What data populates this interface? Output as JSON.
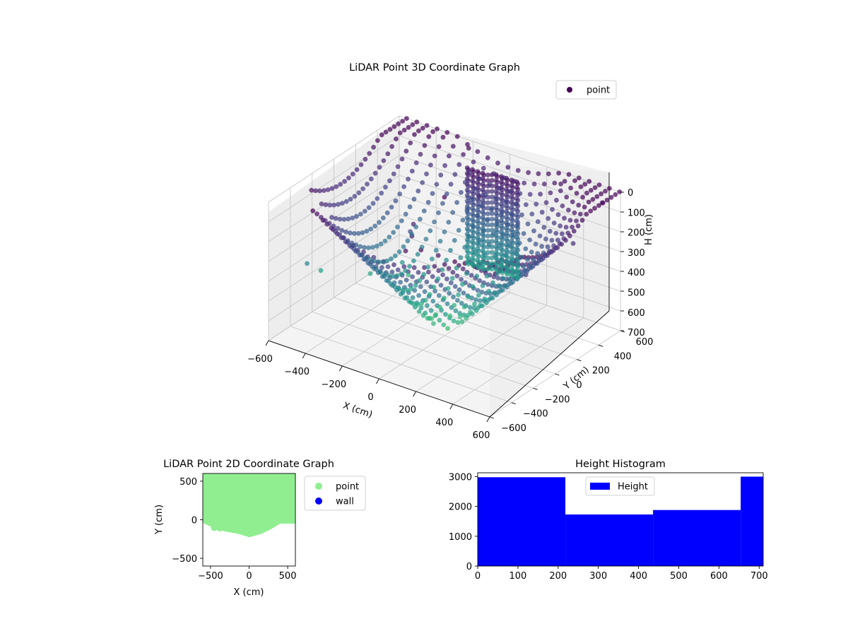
{
  "figure": {
    "colors": {
      "background": "#ffffff",
      "pane_side": "#ebebeb",
      "pane_back": "#f2f2f2",
      "grid": "#c8c8c8",
      "axis": "#000000"
    }
  },
  "chart_data": [
    {
      "type": "scatter",
      "projection": "3d",
      "title": "LiDAR Point 3D Coordinate Graph",
      "xlabel": "X (cm)",
      "ylabel": "Y (cm)",
      "zlabel": "H (cm)",
      "xlim": [
        -600,
        600
      ],
      "ylim": [
        -600,
        600
      ],
      "zlim": [
        0,
        700
      ],
      "z_inverted": true,
      "xticks": [
        "−600",
        "−400",
        "−200",
        "0",
        "200",
        "400",
        "600"
      ],
      "yticks": [
        "−600",
        "−400",
        "−200",
        "0",
        "200",
        "400",
        "600"
      ],
      "zticks": [
        "0",
        "100",
        "200",
        "300",
        "400",
        "500",
        "600",
        "700"
      ],
      "grid": true,
      "legend": {
        "placement": "top-right",
        "entries": [
          "point"
        ]
      },
      "colormap": "viridis",
      "color_by": "H (cm)",
      "series": [
        {
          "name": "point",
          "color": "#440154",
          "description_points": "dense scanned surface; points colored by height, bowl-shaped scan of a room",
          "points": [
            {
              "x": -580,
              "y": -280,
              "z": 420
            },
            {
              "x": -600,
              "y": -120,
              "z": 520
            },
            {
              "x": -450,
              "y": 80,
              "z": 560
            },
            {
              "x": -350,
              "y": 260,
              "z": 600
            },
            {
              "x": -300,
              "y": 120,
              "z": 470
            },
            {
              "x": -150,
              "y": -60,
              "z": 200
            },
            {
              "x": -50,
              "y": -200,
              "z": 80
            },
            {
              "x": 30,
              "y": -350,
              "z": 60
            },
            {
              "x": 120,
              "y": -560,
              "z": 30
            },
            {
              "x": 180,
              "y": -520,
              "z": 20
            },
            {
              "x": 250,
              "y": -480,
              "z": 40
            },
            {
              "x": -200,
              "y": 560,
              "z": 20
            },
            {
              "x": 300,
              "y": 560,
              "z": 40
            },
            {
              "x": 560,
              "y": 500,
              "z": 30
            },
            {
              "x": 580,
              "y": 200,
              "z": 120
            },
            {
              "x": 560,
              "y": -200,
              "z": 140
            },
            {
              "x": 0,
              "y": 0,
              "z": 0
            },
            {
              "x": 100,
              "y": 150,
              "z": 20
            }
          ]
        }
      ]
    },
    {
      "type": "scatter",
      "title": "LiDAR Point 2D Coordinate Graph",
      "xlabel": "X (cm)",
      "ylabel": "Y (cm)",
      "xlim": [
        -600,
        600
      ],
      "ylim": [
        -600,
        600
      ],
      "xticks": [
        "−500",
        "0",
        "500"
      ],
      "yticks": [
        "−500",
        "0",
        "500"
      ],
      "legend": {
        "placement": "outside-right",
        "entries": [
          "point",
          "wall"
        ]
      },
      "series": [
        {
          "name": "point",
          "color": "#90ee90",
          "region_boundary": [
            {
              "x": -600,
              "y": 600
            },
            {
              "x": 600,
              "y": 600
            },
            {
              "x": 600,
              "y": -50
            },
            {
              "x": 400,
              "y": -50
            },
            {
              "x": 340,
              "y": -90
            },
            {
              "x": 250,
              "y": -140
            },
            {
              "x": 150,
              "y": -185
            },
            {
              "x": 50,
              "y": -215
            },
            {
              "x": 0,
              "y": -225
            },
            {
              "x": -70,
              "y": -205
            },
            {
              "x": -150,
              "y": -180
            },
            {
              "x": -240,
              "y": -165
            },
            {
              "x": -320,
              "y": -150
            },
            {
              "x": -400,
              "y": -125
            },
            {
              "x": -470,
              "y": -100
            },
            {
              "x": -540,
              "y": -70
            },
            {
              "x": -600,
              "y": -40
            }
          ]
        },
        {
          "name": "wall",
          "color": "#0000ff",
          "points": []
        }
      ]
    },
    {
      "type": "bar",
      "subtype": "histogram",
      "title": "Height Histogram",
      "xlim": [
        0,
        710
      ],
      "ylim": [
        0,
        3130
      ],
      "xticks": [
        "0",
        "100",
        "200",
        "300",
        "400",
        "500",
        "600",
        "700"
      ],
      "yticks": [
        "0",
        "1000",
        "2000",
        "3000"
      ],
      "legend": {
        "placement": "upper-center",
        "entries": [
          "Height"
        ]
      },
      "series": [
        {
          "name": "Height",
          "color": "#0000ff",
          "bins": [
            {
              "start": 0,
              "end": 218,
              "count": 2980
            },
            {
              "start": 218,
              "end": 436,
              "count": 1730
            },
            {
              "start": 436,
              "end": 654,
              "count": 1880
            },
            {
              "start": 654,
              "end": 710,
              "count": 3000
            }
          ]
        }
      ]
    }
  ]
}
